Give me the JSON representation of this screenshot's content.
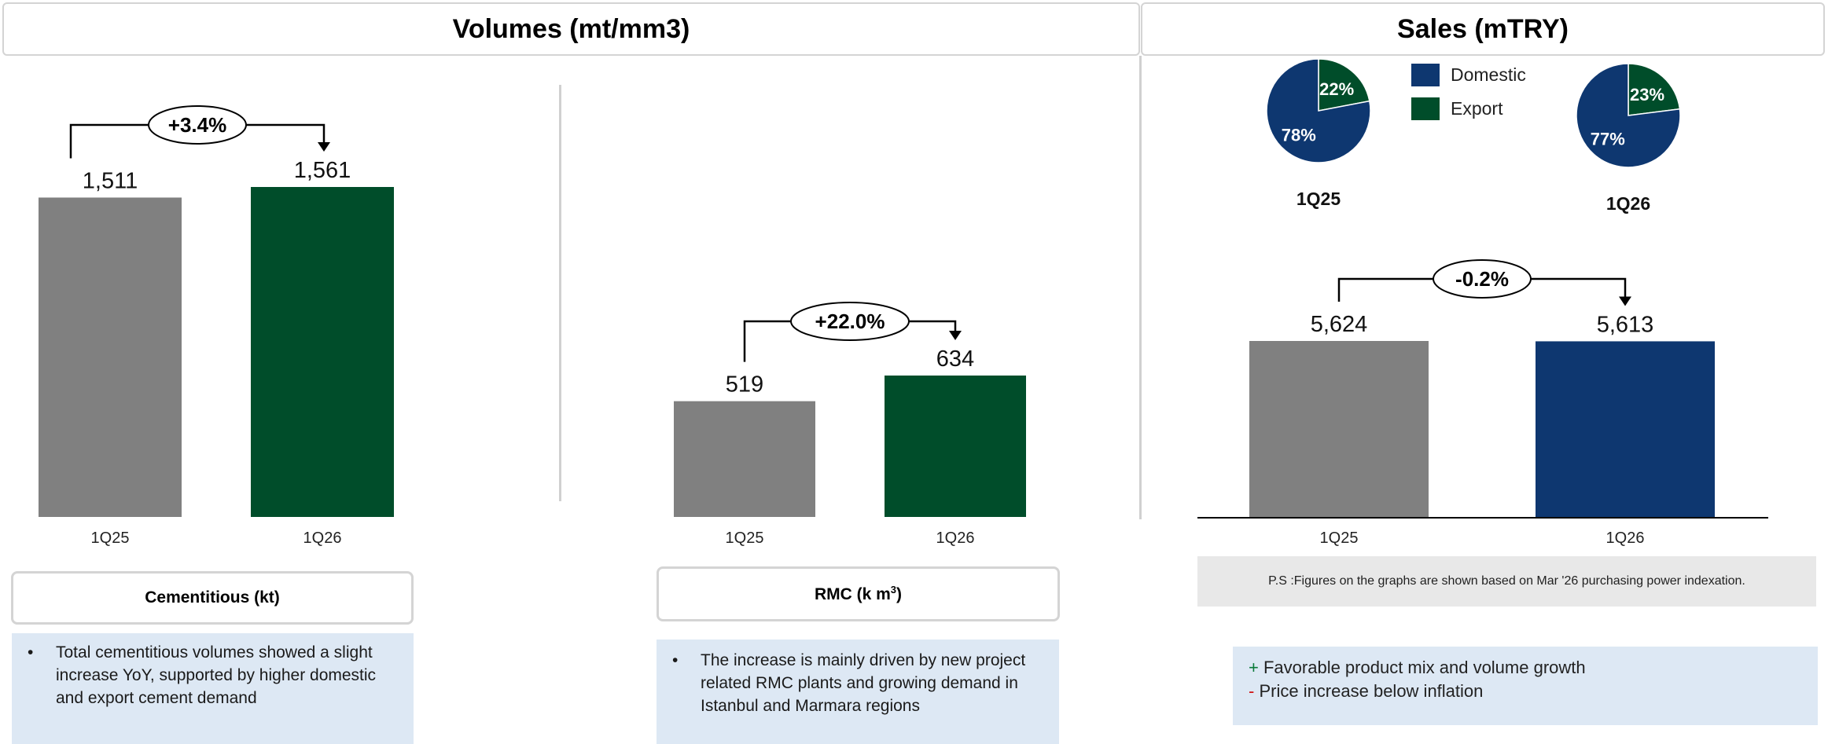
{
  "headers": {
    "volumes": "Volumes (mt/mm3)",
    "sales": "Sales (mTRY)"
  },
  "cementitious": {
    "box_label": "Cementitious (kt)",
    "note": "Total cementitious volumes showed a slight increase YoY, supported by higher domestic and export cement demand",
    "growth_label": "+3.4%"
  },
  "rmc": {
    "box_label_main": "RMC (k m",
    "box_label_sup": "3",
    "box_label_end": ")",
    "note": "The increase is mainly driven by new project related RMC plants and growing demand in Istanbul and Marmara regions",
    "growth_label": "+22.0%"
  },
  "sales": {
    "growth_label": "-0.2%",
    "ps_note": "P.S :Figures on the graphs are shown based on Mar '26 purchasing power indexation.",
    "legend": [
      {
        "name": "Domestic",
        "color": "#0e3770"
      },
      {
        "name": "Export",
        "color": "#004d2a"
      }
    ],
    "pie_labels": [
      "1Q25",
      "1Q26"
    ],
    "bullets": [
      {
        "sign": "+",
        "text": "Favorable product mix and volume growth",
        "sign_color": "#0b7a3a"
      },
      {
        "sign": "-",
        "text": "Price increase below inflation",
        "sign_color": "#d01010"
      }
    ]
  },
  "colors": {
    "gray_bar": "#808080",
    "green_bar": "#004d2a",
    "blue_bar": "#0e3770"
  },
  "chart_data": [
    {
      "type": "bar",
      "title": "Cementitious (kt)",
      "categories": [
        "1Q25",
        "1Q26"
      ],
      "values": [
        1511,
        1561
      ],
      "value_labels": [
        "1,511",
        "1,561"
      ],
      "annotation": "+3.4%"
    },
    {
      "type": "bar",
      "title": "RMC (k m3)",
      "categories": [
        "1Q25",
        "1Q26"
      ],
      "values": [
        519,
        634
      ],
      "value_labels": [
        "519",
        "634"
      ],
      "annotation": "+22.0%"
    },
    {
      "type": "bar",
      "title": "Sales (mTRY)",
      "categories": [
        "1Q25",
        "1Q26"
      ],
      "values": [
        5624,
        5613
      ],
      "value_labels": [
        "5,624",
        "5,613"
      ],
      "annotation": "-0.2%"
    },
    {
      "type": "pie",
      "title": "1Q25",
      "labels": [
        "Domestic",
        "Export"
      ],
      "values": [
        78,
        22
      ],
      "value_labels": [
        "78%",
        "22%"
      ]
    },
    {
      "type": "pie",
      "title": "1Q26",
      "labels": [
        "Domestic",
        "Export"
      ],
      "values": [
        77,
        23
      ],
      "value_labels": [
        "77%",
        "23%"
      ]
    }
  ]
}
